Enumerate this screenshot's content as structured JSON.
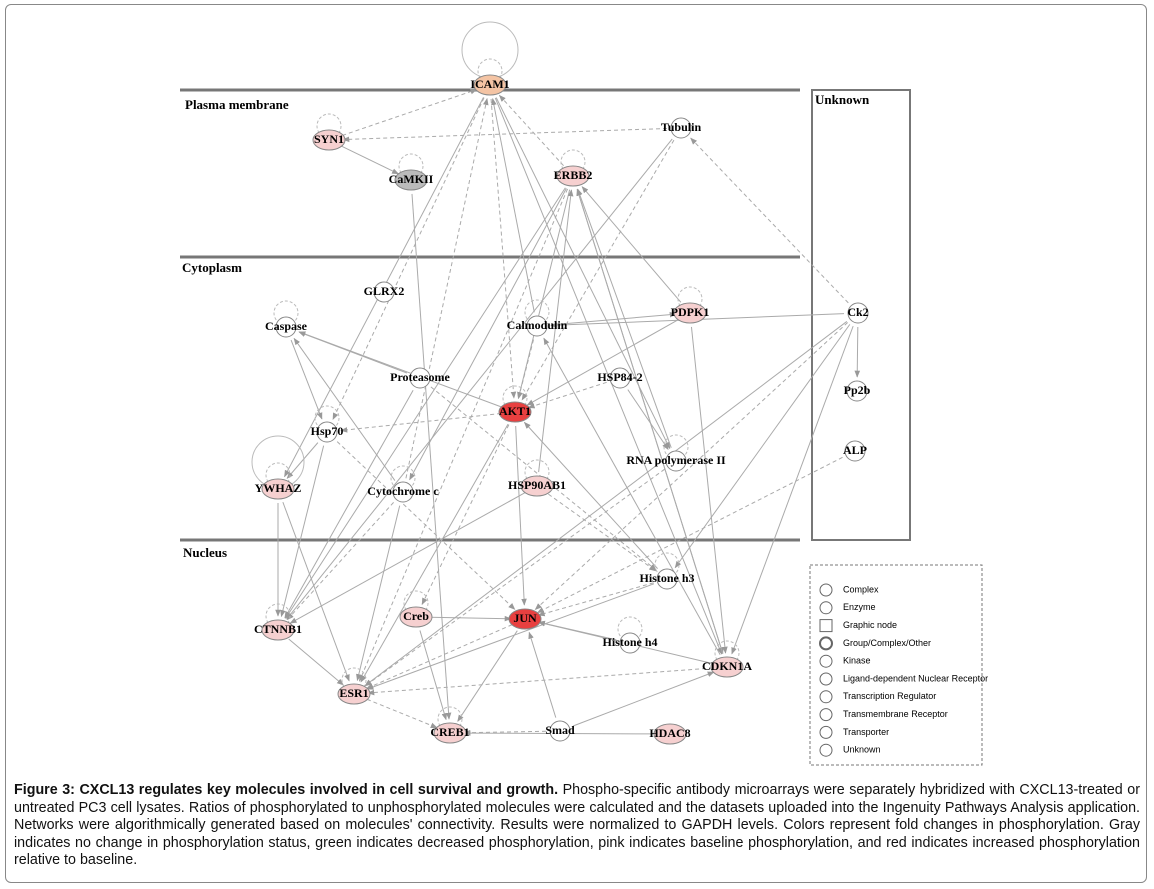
{
  "compartments": [
    "Plasma membrane",
    "Cytoplasm",
    "Nucleus",
    "Unknown"
  ],
  "nodes": [
    {
      "label": "ICAM1"
    },
    {
      "label": "SYN1"
    },
    {
      "label": "CaMKII"
    },
    {
      "label": "ERBB2"
    },
    {
      "label": "Tubulin"
    },
    {
      "label": "GLRX2"
    },
    {
      "label": "Caspase"
    },
    {
      "label": "Calmodulin"
    },
    {
      "label": "PDPK1"
    },
    {
      "label": "Ck2"
    },
    {
      "label": "Proteasome"
    },
    {
      "label": "HSP84-2"
    },
    {
      "label": "AKT1"
    },
    {
      "label": "Hsp70"
    },
    {
      "label": "Pp2b"
    },
    {
      "label": "ALP"
    },
    {
      "label": "RNA polymerase II"
    },
    {
      "label": "YWHAZ"
    },
    {
      "label": "Cytochrome c"
    },
    {
      "label": "HSP90AB1"
    },
    {
      "label": "Histone h3"
    },
    {
      "label": "Creb"
    },
    {
      "label": "JUN"
    },
    {
      "label": "CTNNB1"
    },
    {
      "label": "Histone h4"
    },
    {
      "label": "CDKN1A"
    },
    {
      "label": "ESR1"
    },
    {
      "label": "CREB1"
    },
    {
      "label": "Smad"
    },
    {
      "label": "HDAC8"
    }
  ],
  "legend": [
    "Complex",
    "Enzyme",
    "Graphic node",
    "Group/Complex/Other",
    "Kinase",
    "Ligand-dependent Nuclear Receptor",
    "Transcription Regulator",
    "Transmembrane Receptor",
    "Transporter",
    "Unknown"
  ],
  "caption": {
    "title": "Figure 3: CXCL13 regulates key molecules involved in cell survival and growth.",
    "text": "Phospho-specific antibody microarrays were separately hybridized with CXCL13-treated or untreated PC3 cell lysates. Ratios of phosphorylated to unphosphorylated molecules were calculated and the datasets uploaded into the Ingenuity Pathways Analysis application. Networks were algorithmically generated based on molecules' connectivity. Results were normalized to GAPDH levels. Colors represent fold changes in phosphorylation. Gray indicates no change in phosphorylation status, green indicates decreased phosphorylation, pink indicates baseline phosphorylation, and red indicates increased phosphorylation relative to baseline."
  }
}
